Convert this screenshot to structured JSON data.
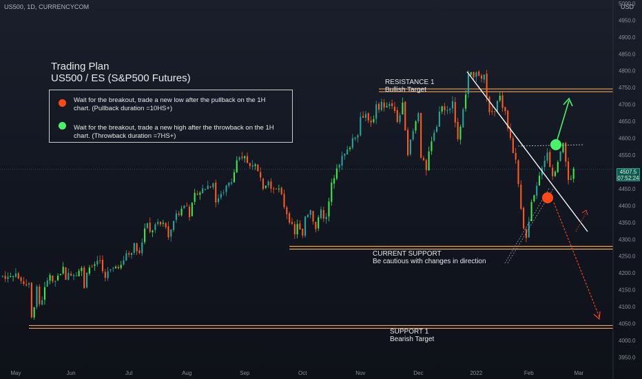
{
  "header": {
    "symbol_line": "US500, 1D, CURRENCYCOM",
    "currency": "USD"
  },
  "plan": {
    "title": "Trading Plan",
    "subtitle": "US500 / ES (S&P500 Futures)",
    "items": [
      {
        "color": "#ff4a18",
        "text": "Wait for the breakout, trade a new low after the pullback on the 1H chart. (Pullback duration =10HS+)"
      },
      {
        "color": "#4af26a",
        "text": "Wait for the breakout, trade a new high after the throwback on the 1H chart. (Throwback duration =7HS+)"
      }
    ]
  },
  "annotations": {
    "resistance": [
      "RESISTANCE 1",
      "Bullish Target"
    ],
    "current_support": [
      "CURRENT SUPPORT",
      "Be cautious with changes in direction"
    ],
    "support": [
      "SUPPORT 1",
      "Bearish Target"
    ]
  },
  "price_tag": {
    "value": "4507.5",
    "countdown": "07:52:24"
  },
  "colors": {
    "up": "#26a69a",
    "up_bright": "#3ce84e",
    "down": "#ff5a1f",
    "level": "#f0a35a",
    "trendline": "#ffffff",
    "bull_arrow": "#4af26a",
    "bear_arrow": "#ff4a18"
  },
  "chart_data": {
    "type": "line",
    "title": "US500, 1D, CURRENCYCOM",
    "ylabel": "USD",
    "ylim": [
      3910,
      5010
    ],
    "y_ticks": [
      3950,
      4000,
      4050,
      4100,
      4150,
      4200,
      4250,
      4300,
      4350,
      4400,
      4450,
      4500,
      4550,
      4600,
      4650,
      4700,
      4750,
      4800,
      4850,
      4900,
      4950,
      5000
    ],
    "x_ticks": [
      "May",
      "Jun",
      "Jul",
      "Aug",
      "Sep",
      "Oct",
      "Nov",
      "Dec",
      "2022",
      "Feb",
      "Mar"
    ],
    "x_tick_pos": [
      0,
      21,
      43,
      65,
      87,
      109,
      131,
      153,
      175,
      195,
      214
    ],
    "xlim": [
      -6,
      227
    ],
    "series": [
      {
        "name": "",
        "path": [
          [
            -5,
            4190
          ],
          [
            0,
            4200
          ],
          [
            1,
            4180
          ],
          [
            5,
            4170
          ],
          [
            6,
            4065
          ],
          [
            8,
            4150
          ],
          [
            9,
            4100
          ],
          [
            13,
            4200
          ],
          [
            14,
            4165
          ],
          [
            18,
            4215
          ],
          [
            19,
            4190
          ],
          [
            22,
            4200
          ],
          [
            25,
            4210
          ],
          [
            26,
            4160
          ],
          [
            27,
            4210
          ],
          [
            32,
            4230
          ],
          [
            34,
            4175
          ],
          [
            35,
            4200
          ],
          [
            40,
            4230
          ],
          [
            45,
            4280
          ],
          [
            47,
            4270
          ],
          [
            50,
            4350
          ],
          [
            51,
            4320
          ],
          [
            53,
            4340
          ],
          [
            57,
            4345
          ],
          [
            58,
            4300
          ],
          [
            60,
            4360
          ],
          [
            65,
            4410
          ],
          [
            66,
            4370
          ],
          [
            68,
            4430
          ],
          [
            75,
            4470
          ],
          [
            76,
            4410
          ],
          [
            78,
            4440
          ],
          [
            82,
            4470
          ],
          [
            84,
            4530
          ],
          [
            87,
            4540
          ],
          [
            89,
            4520
          ],
          [
            90,
            4530
          ],
          [
            94,
            4460
          ],
          [
            96,
            4480
          ],
          [
            98,
            4440
          ],
          [
            100,
            4450
          ],
          [
            102,
            4400
          ],
          [
            104,
            4360
          ],
          [
            106,
            4310
          ],
          [
            107,
            4350
          ],
          [
            109,
            4300
          ],
          [
            110,
            4370
          ],
          [
            112,
            4390
          ],
          [
            114,
            4330
          ],
          [
            116,
            4380
          ],
          [
            118,
            4360
          ],
          [
            120,
            4460
          ],
          [
            122,
            4520
          ],
          [
            124,
            4540
          ],
          [
            126,
            4560
          ],
          [
            128,
            4600
          ],
          [
            130,
            4620
          ],
          [
            131,
            4660
          ],
          [
            133,
            4680
          ],
          [
            135,
            4640
          ],
          [
            137,
            4690
          ],
          [
            139,
            4700
          ],
          [
            141,
            4690
          ],
          [
            143,
            4700
          ],
          [
            145,
            4650
          ],
          [
            147,
            4700
          ],
          [
            149,
            4560
          ],
          [
            151,
            4620
          ],
          [
            153,
            4680
          ],
          [
            154,
            4550
          ],
          [
            156,
            4500
          ],
          [
            158,
            4600
          ],
          [
            160,
            4640
          ],
          [
            162,
            4700
          ],
          [
            164,
            4680
          ],
          [
            166,
            4710
          ],
          [
            168,
            4600
          ],
          [
            170,
            4680
          ],
          [
            172,
            4780
          ],
          [
            174,
            4790
          ],
          [
            176,
            4795
          ],
          [
            178,
            4780
          ],
          [
            180,
            4670
          ],
          [
            182,
            4690
          ],
          [
            184,
            4720
          ],
          [
            186,
            4670
          ],
          [
            188,
            4600
          ],
          [
            190,
            4530
          ],
          [
            192,
            4400
          ],
          [
            193,
            4340
          ],
          [
            194,
            4300
          ],
          [
            196,
            4400
          ],
          [
            198,
            4450
          ],
          [
            200,
            4520
          ],
          [
            202,
            4560
          ],
          [
            204,
            4480
          ],
          [
            206,
            4540
          ],
          [
            208,
            4590
          ],
          [
            210,
            4470
          ],
          [
            212,
            4500
          ]
        ]
      }
    ],
    "levels": [
      {
        "name": "RESISTANCE 1",
        "value": 4742,
        "from_x": 138
      },
      {
        "name": "CURRENT SUPPORT",
        "value": 4275,
        "from_x": 104
      },
      {
        "name": "SUPPORT 1",
        "value": 4040,
        "from_x": 5
      }
    ],
    "last_price": 4507.5
  }
}
